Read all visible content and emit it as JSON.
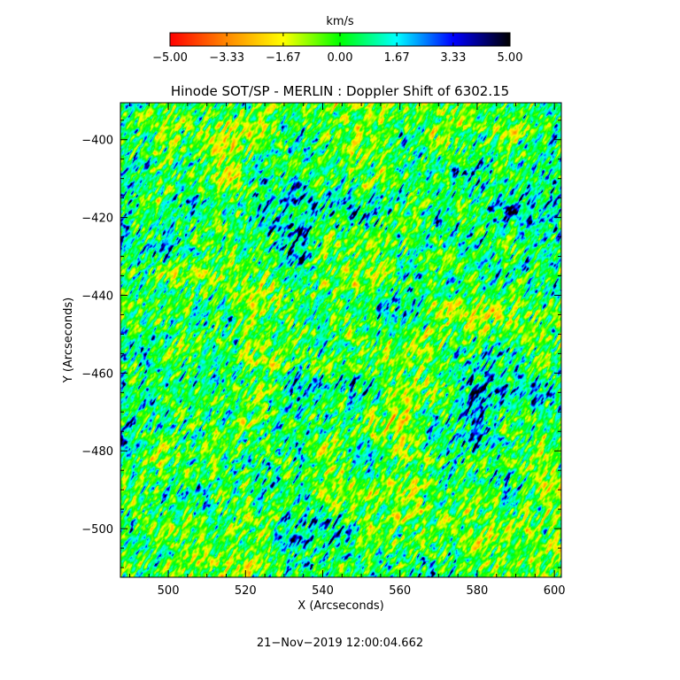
{
  "chart_data": {
    "type": "heatmap",
    "title": "Hinode SOT/SP - MERLIN : Doppler Shift of 6302.15",
    "xlabel": "X (Arcseconds)",
    "ylabel": "Y (Arcseconds)",
    "xlim": [
      487.6,
      601.8
    ],
    "ylim": [
      -512.5,
      -390.5
    ],
    "xticks": [
      500,
      520,
      540,
      560,
      580,
      600
    ],
    "yticks": [
      -400,
      -420,
      -440,
      -460,
      -480,
      -500
    ],
    "x_tick_labels": [
      "500",
      "520",
      "540",
      "560",
      "580",
      "600"
    ],
    "y_tick_labels": [
      "−400",
      "−420",
      "−440",
      "−460",
      "−480",
      "−500"
    ],
    "colorbar": {
      "unit_label": "km/s",
      "range": [
        -5.0,
        5.0
      ],
      "ticks": [
        -5.0,
        -3.33,
        -1.67,
        0.0,
        1.67,
        3.33,
        5.0
      ],
      "tick_labels": [
        "−5.00",
        "−3.33",
        "−1.67",
        "0.00",
        "1.67",
        "3.33",
        "5.00"
      ],
      "colors": [
        "#ff0000",
        "#ff8800",
        "#ffff00",
        "#00ff00",
        "#00ffff",
        "#0000ff",
        "#000000"
      ]
    },
    "field_description_values": {
      "dominant_range_kms": [
        -1.67,
        1.67
      ],
      "streak_orientation": "diagonal lower-left to upper-right"
    }
  },
  "footer": {
    "timestamp": "21−Nov−2019 12:00:04.662"
  }
}
